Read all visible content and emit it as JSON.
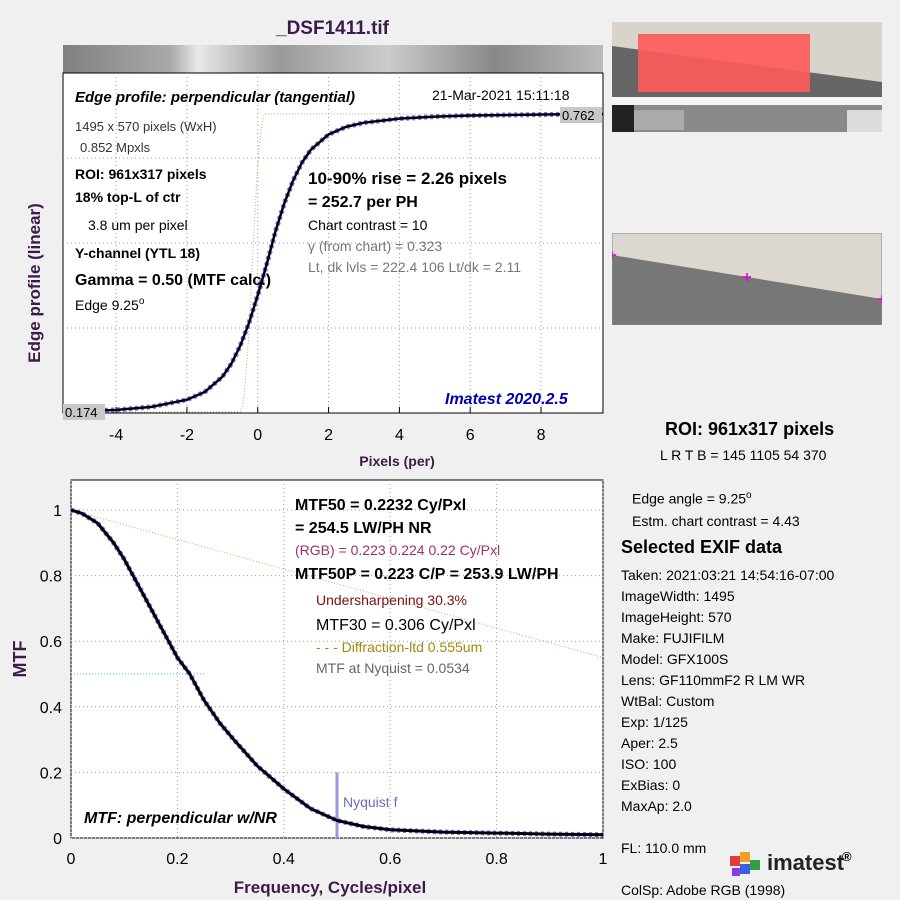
{
  "window_title": "_DSF1411.tif",
  "edge_panel": {
    "title": "Edge profile: perpendicular (tangential)",
    "date": "21-Mar-2021 15:11:18",
    "ylabel": "Edge profile (linear)",
    "xlabel": "Pixels (per)",
    "xticks": [
      "-4",
      "-2",
      "0",
      "2",
      "4",
      "6",
      "8"
    ],
    "top_value": "0.762",
    "bottom_value": "0.174",
    "info_left": {
      "size": "1495 x 570 pixels (WxH)",
      "mpxls": "0.852 Mpxls",
      "roi": "ROI:  961x317 pixels",
      "location": "18% top-L of ctr",
      "um_per_pixel": "3.8 um per pixel",
      "channel": "Y-channel  (YTL 18)",
      "gamma": "Gamma = 0.50 (MTF calc.)",
      "edge_label": "Edge   9.25",
      "edge_deg": "o"
    },
    "info_right": {
      "rise": "10-90% rise = 2.26 pixels",
      "per_ph": "=  252.7 per PH",
      "contrast": "Chart contrast = 10",
      "gamma_from_chart": "γ (from chart) = 0.323",
      "levels": "Lt, dk lvls = 222.4  106  Lt/dk = 2.11"
    },
    "version": "Imatest 2020.2.5"
  },
  "mtf_panel": {
    "ylabel": "MTF",
    "xlabel": "Frequency, Cycles/pixel",
    "caption": "MTF: perpendicular w/NR",
    "nyquist_label": "Nyquist f",
    "xticks": [
      "0",
      "0.2",
      "0.4",
      "0.6",
      "0.8",
      "1"
    ],
    "yticks": [
      "0",
      "0.2",
      "0.4",
      "0.6",
      "0.8",
      "1"
    ],
    "info": {
      "mtf50": "MTF50 = 0.2232 Cy/Pxl",
      "lwph": "= 254.5 LW/PH  NR",
      "rgb": "(RGB) = 0.223  0.224  0.22 Cy/Pxl",
      "mtf50p": "MTF50P = 0.223 C/P = 253.9 LW/PH",
      "undersharp": "Undersharpening 30.3%",
      "mtf30": "MTF30 = 0.306 Cy/Pxl",
      "diffraction": "- - - Diffraction-ltd  0.555um",
      "nyquist_mtf": "MTF at Nyquist = 0.0534"
    }
  },
  "roi_info": {
    "title": "ROI:  961x317 pixels",
    "coords": "L R  T B = 145 1105  54 370",
    "edge_angle": "Edge angle = 9.25",
    "edge_angle_deg": "o",
    "chart_contrast": "Estm. chart contrast = 4.43"
  },
  "exif": {
    "title": "Selected EXIF data",
    "lines": [
      "Taken: 2021:03:21 14:54:16-07:00",
      "ImageWidth:  1495",
      "ImageHeight:  570",
      "Make:  FUJIFILM",
      "Model:  GFX100S",
      "Lens:  GF110mmF2 R LM WR",
      "WtBal:  Custom",
      "Exp:    1/125",
      "Aper:   2.5",
      "ISO:    100",
      "ExBias:  0",
      "MaxAp:  2.0",
      "",
      "FL:      110.0 mm",
      "",
      "ColSp:  Adobe RGB (1998)"
    ]
  },
  "logo": {
    "text": "imatest",
    "mark": "®"
  },
  "colors": {
    "curve": "#000000",
    "dashed": "#7070ff",
    "diffraction": "#b8b060",
    "nyquist": "#9999e0",
    "title": "#3d1a4a",
    "version": "#0000b0",
    "rgb": "#a0306a",
    "undersharp": "#7a1010",
    "roi_red": "#ff5a5a",
    "marker": "#e000e0"
  },
  "chart_data": [
    {
      "type": "line",
      "title": "Edge profile: perpendicular (tangential)",
      "xlabel": "Pixels (per)",
      "ylabel": "Edge profile (linear)",
      "xlim": [
        -5.5,
        9.75
      ],
      "ylim": [
        0.174,
        0.762
      ],
      "grid": true,
      "series": [
        {
          "x": [
            -5.5,
            -4,
            -3,
            -2,
            -1.5,
            -1,
            -0.75,
            -0.5,
            -0.25,
            0,
            0.25,
            0.5,
            0.75,
            1,
            1.25,
            1.5,
            2,
            2.5,
            3,
            4,
            5,
            6,
            8,
            9.75
          ],
          "values": [
            0.176,
            0.18,
            0.186,
            0.2,
            0.215,
            0.245,
            0.27,
            0.305,
            0.35,
            0.405,
            0.465,
            0.53,
            0.585,
            0.63,
            0.665,
            0.69,
            0.72,
            0.735,
            0.743,
            0.751,
            0.755,
            0.757,
            0.759,
            0.76
          ]
        }
      ]
    },
    {
      "type": "line",
      "title": "MTF: perpendicular w/NR",
      "xlabel": "Frequency, Cycles/pixel",
      "ylabel": "MTF",
      "xlim": [
        0,
        1
      ],
      "ylim": [
        0,
        1.0
      ],
      "grid": true,
      "series": [
        {
          "x": [
            0,
            0.02,
            0.05,
            0.08,
            0.1,
            0.12,
            0.15,
            0.18,
            0.2,
            0.2232,
            0.25,
            0.28,
            0.306,
            0.35,
            0.4,
            0.45,
            0.5,
            0.55,
            0.6,
            0.7,
            0.8,
            0.9,
            1.0
          ],
          "values": [
            1.0,
            0.99,
            0.96,
            0.9,
            0.85,
            0.79,
            0.7,
            0.61,
            0.55,
            0.5,
            0.42,
            0.35,
            0.3,
            0.22,
            0.15,
            0.09,
            0.0534,
            0.035,
            0.025,
            0.018,
            0.015,
            0.012,
            0.01
          ]
        },
        {
          "name": "Diffraction-ltd  0.555um",
          "x": [
            0,
            1.0
          ],
          "values": [
            1.0,
            0.55
          ]
        }
      ]
    }
  ]
}
